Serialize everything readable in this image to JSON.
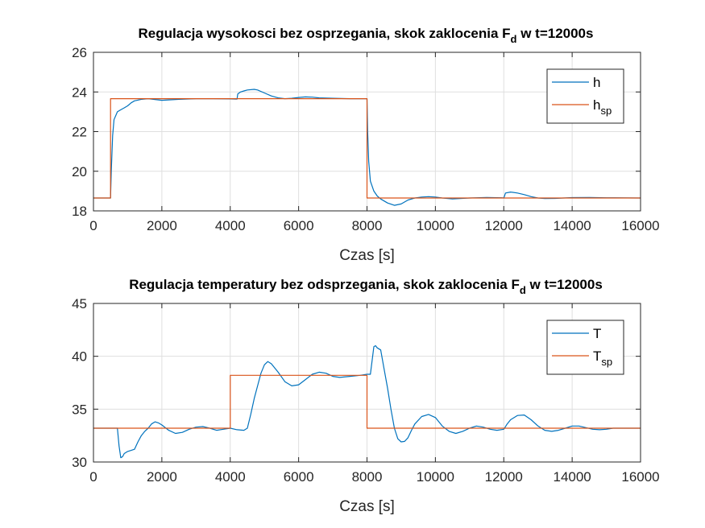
{
  "colors": {
    "series_blue": "#0072BD",
    "series_orange": "#D95319",
    "grid": "#dfdfdf",
    "axes": "#262626"
  },
  "chart_data": [
    {
      "type": "line",
      "title_main": "Regulacja wysokosci bez osprzegania, skok zaklocenia F",
      "title_sub": "d",
      "title_tail": " w t=12000s",
      "xlabel": "Czas [s]",
      "ylabel": "",
      "xlim": [
        0,
        16000
      ],
      "ylim": [
        18,
        26
      ],
      "xticks": [
        0,
        2000,
        4000,
        6000,
        8000,
        10000,
        12000,
        14000,
        16000
      ],
      "xtick_labels": [
        "0",
        "2000",
        "4000",
        "6000",
        "8000",
        "10000",
        "12000",
        "14000",
        "16000"
      ],
      "yticks": [
        18,
        20,
        22,
        24,
        26
      ],
      "ytick_labels": [
        "18",
        "20",
        "22",
        "24",
        "26"
      ],
      "grid": true,
      "legend_position": "top-right",
      "series": [
        {
          "name": "h",
          "name_sub": "",
          "color": "#0072BD",
          "x": [
            0,
            500,
            520,
            560,
            600,
            700,
            800,
            900,
            1000,
            1100,
            1200,
            1400,
            1600,
            1800,
            2000,
            2200,
            2500,
            3000,
            3500,
            4000,
            4200,
            4220,
            4300,
            4400,
            4500,
            4700,
            4800,
            5000,
            5200,
            5400,
            5600,
            5800,
            6000,
            6200,
            6400,
            6600,
            7000,
            7500,
            7950,
            8000,
            8020,
            8050,
            8100,
            8200,
            8300,
            8400,
            8600,
            8800,
            9000,
            9200,
            9400,
            9600,
            9800,
            10000,
            10200,
            10500,
            11000,
            11500,
            11950,
            12000,
            12050,
            12200,
            12400,
            12600,
            12800,
            13000,
            13200,
            13500,
            14000,
            14500,
            15000,
            16000
          ],
          "y": [
            18.65,
            18.65,
            20.0,
            21.8,
            22.6,
            23.0,
            23.1,
            23.2,
            23.3,
            23.45,
            23.55,
            23.63,
            23.66,
            23.62,
            23.58,
            23.6,
            23.63,
            23.66,
            23.66,
            23.65,
            23.64,
            23.9,
            24.0,
            24.05,
            24.1,
            24.13,
            24.1,
            23.95,
            23.8,
            23.7,
            23.66,
            23.68,
            23.72,
            23.75,
            23.74,
            23.7,
            23.68,
            23.66,
            23.66,
            23.66,
            22.0,
            20.5,
            19.5,
            19.0,
            18.75,
            18.6,
            18.4,
            18.28,
            18.35,
            18.55,
            18.65,
            18.7,
            18.72,
            18.7,
            18.65,
            18.6,
            18.65,
            18.68,
            18.66,
            18.65,
            18.9,
            18.95,
            18.9,
            18.82,
            18.72,
            18.65,
            18.62,
            18.63,
            18.67,
            18.68,
            18.66,
            18.65
          ]
        },
        {
          "name": "h",
          "name_sub": "sp",
          "color": "#D95319",
          "x": [
            0,
            500,
            500,
            8000,
            8000,
            16000
          ],
          "y": [
            18.65,
            18.65,
            23.66,
            23.66,
            18.65,
            18.65
          ]
        }
      ]
    },
    {
      "type": "line",
      "title_main": "Regulacja temperatury bez odsprzegania, skok zaklocenia F",
      "title_sub": "d",
      "title_tail": " w t=12000s",
      "xlabel": "Czas [s]",
      "ylabel": "",
      "xlim": [
        0,
        16000
      ],
      "ylim": [
        30,
        45
      ],
      "xticks": [
        0,
        2000,
        4000,
        6000,
        8000,
        10000,
        12000,
        14000,
        16000
      ],
      "xtick_labels": [
        "0",
        "2000",
        "4000",
        "6000",
        "8000",
        "10000",
        "12000",
        "14000",
        "16000"
      ],
      "yticks": [
        30,
        35,
        40,
        45
      ],
      "ytick_labels": [
        "30",
        "35",
        "40",
        "45"
      ],
      "grid": true,
      "legend_position": "top-right",
      "series": [
        {
          "name": "T",
          "name_sub": "",
          "color": "#0072BD",
          "x": [
            0,
            700,
            750,
            800,
            850,
            900,
            1000,
            1100,
            1200,
            1300,
            1400,
            1500,
            1600,
            1700,
            1800,
            1900,
            2000,
            2200,
            2400,
            2600,
            2800,
            3000,
            3200,
            3400,
            3600,
            3800,
            4000,
            4200,
            4400,
            4500,
            4600,
            4700,
            4800,
            4900,
            5000,
            5100,
            5200,
            5400,
            5600,
            5800,
            6000,
            6200,
            6400,
            6600,
            6800,
            7000,
            7200,
            7500,
            7800,
            8000,
            8100,
            8200,
            8250,
            8300,
            8400,
            8500,
            8600,
            8700,
            8800,
            8900,
            9000,
            9100,
            9200,
            9300,
            9400,
            9600,
            9800,
            10000,
            10200,
            10400,
            10600,
            10800,
            11000,
            11200,
            11400,
            11600,
            11800,
            12000,
            12100,
            12200,
            12400,
            12600,
            12800,
            13000,
            13200,
            13400,
            13600,
            13800,
            14000,
            14200,
            14400,
            14600,
            14800,
            15000,
            15200,
            15500,
            16000
          ],
          "y": [
            33.2,
            33.2,
            31.5,
            30.4,
            30.5,
            30.8,
            31.0,
            31.1,
            31.2,
            31.9,
            32.5,
            32.9,
            33.2,
            33.6,
            33.8,
            33.7,
            33.5,
            33.0,
            32.7,
            32.8,
            33.1,
            33.3,
            33.35,
            33.2,
            33.0,
            33.1,
            33.2,
            33.05,
            33.0,
            33.2,
            34.5,
            36.0,
            37.2,
            38.4,
            39.2,
            39.5,
            39.3,
            38.5,
            37.6,
            37.2,
            37.3,
            37.8,
            38.3,
            38.5,
            38.4,
            38.1,
            38.0,
            38.1,
            38.2,
            38.3,
            38.3,
            40.9,
            41.0,
            40.8,
            40.6,
            38.8,
            37.0,
            35.0,
            33.2,
            32.2,
            31.9,
            31.95,
            32.3,
            33.0,
            33.6,
            34.3,
            34.5,
            34.2,
            33.4,
            32.9,
            32.7,
            32.9,
            33.2,
            33.4,
            33.3,
            33.1,
            33.0,
            33.1,
            33.6,
            34.0,
            34.4,
            34.45,
            34.0,
            33.4,
            33.0,
            32.9,
            33.0,
            33.2,
            33.4,
            33.4,
            33.25,
            33.1,
            33.05,
            33.1,
            33.2,
            33.2,
            33.2
          ]
        },
        {
          "name": "T",
          "name_sub": "sp",
          "color": "#D95319",
          "x": [
            0,
            4000,
            4000,
            8000,
            8000,
            16000
          ],
          "y": [
            33.2,
            33.2,
            38.2,
            38.2,
            33.2,
            33.2
          ]
        }
      ]
    }
  ]
}
